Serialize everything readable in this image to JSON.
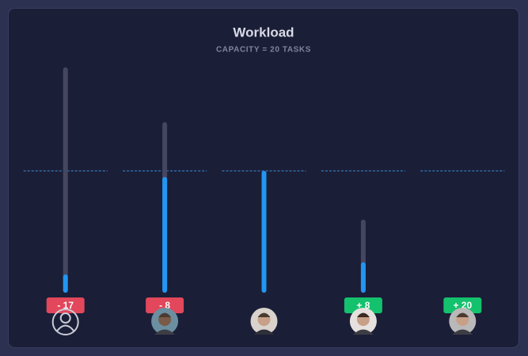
{
  "chart_data": {
    "type": "workload",
    "title": "Workload",
    "subtitle": "CAPACITY = 20 TASKS",
    "capacity": 20,
    "ylim": [
      0,
      40
    ],
    "series": [
      {
        "color": "#44475f",
        "values": [
          37,
          28,
          20,
          12,
          0
        ]
      },
      {
        "color": "#2196f3",
        "values": [
          3,
          19,
          20,
          5,
          0
        ]
      }
    ],
    "balance": {
      "values": [
        -17,
        -8,
        null,
        8,
        20
      ],
      "value_labels": [
        "- 17",
        "- 8",
        null,
        "+ 8",
        "+ 20"
      ],
      "negative_color": "#e2475b",
      "positive_color": "#14c16d"
    }
  }
}
